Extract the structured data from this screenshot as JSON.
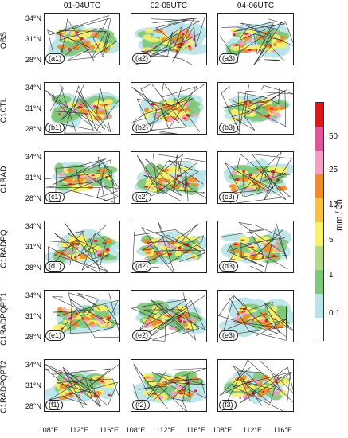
{
  "columns": [
    "01-04UTC",
    "02-05UTC",
    "04-06UTC"
  ],
  "rows": [
    "OBS",
    "C1CTL",
    "C1RAD",
    "C1RADPQ",
    "C1RADPQPT1",
    "C1RADPQPT2"
  ],
  "panel_tags": [
    [
      "(a1)",
      "(a2)",
      "(a3)"
    ],
    [
      "(b1)",
      "(b2)",
      "(b3)"
    ],
    [
      "(c1)",
      "(c2)",
      "(c3)"
    ],
    [
      "(d1)",
      "(d2)",
      "(d3)"
    ],
    [
      "(e1)",
      "(e2)",
      "(e3)"
    ],
    [
      "(f1)",
      "(f2)",
      "(f3)"
    ]
  ],
  "lat_ticks": [
    "34°N",
    "31°N",
    "28°N"
  ],
  "lon_ticks": [
    "108°E",
    "112°E",
    "116°E"
  ],
  "colorbar": {
    "unit": "mm / 3h",
    "labels": [
      "50",
      "25",
      "10",
      "5",
      "1",
      "0.1"
    ],
    "colors": [
      "#d7191c",
      "#e0569b",
      "#f3a0c6",
      "#f08a2a",
      "#f5c242",
      "#f7f06a",
      "#b2d98a",
      "#7fc77a",
      "#b9e3e8",
      "#ffffff"
    ]
  }
}
